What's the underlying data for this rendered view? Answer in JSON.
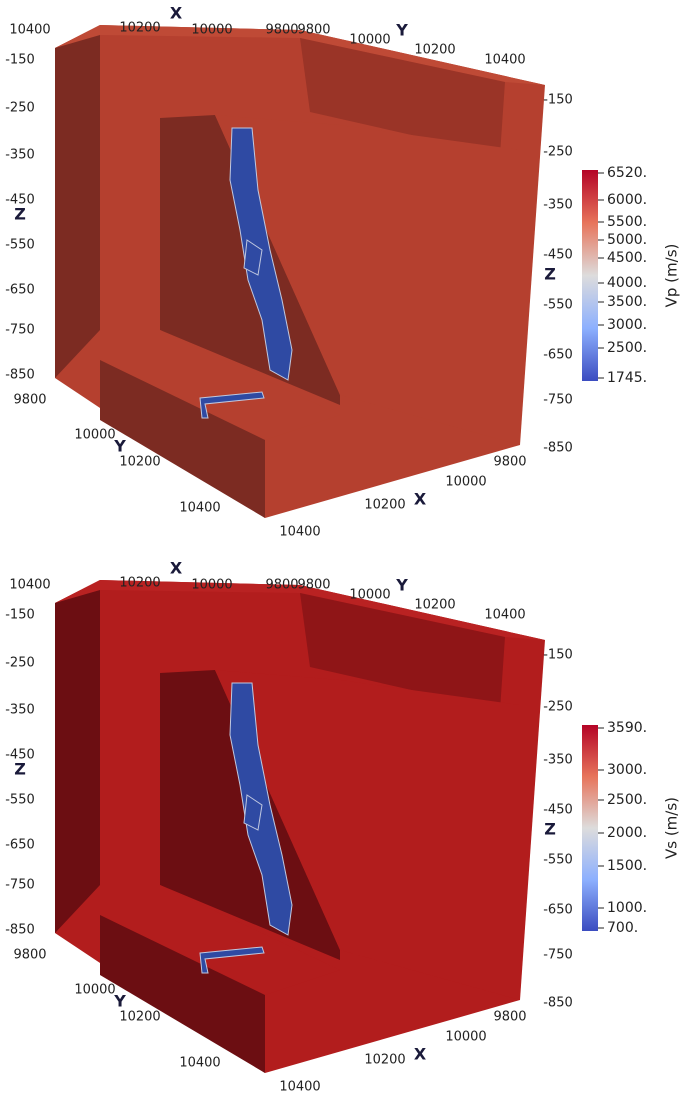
{
  "panels": [
    {
      "top_x_ticks": [
        "10400",
        "10200",
        "10000",
        "9800"
      ],
      "top_x_label": "X",
      "top_y_ticks": [
        "9800",
        "10000",
        "10200",
        "10400"
      ],
      "top_y_label": "Y",
      "left_z_ticks": [
        "-150",
        "-250",
        "-350",
        "-450",
        "-550",
        "-650",
        "-750",
        "-850"
      ],
      "left_z_label": "Z",
      "right_z_ticks": [
        "-150",
        "-250",
        "-350",
        "-450",
        "-550",
        "-650",
        "-750",
        "-850"
      ],
      "right_z_label": "Z",
      "bottom_y_ticks": [
        "9800",
        "10000",
        "10200",
        "10400"
      ],
      "bottom_y_label": "Y",
      "bottom_x_ticks": [
        "10400",
        "10200",
        "10000",
        "9800"
      ],
      "bottom_x_label": "X",
      "colorbar": {
        "title": "Vp (m/s)",
        "ticks": [
          "6520.",
          "6000.",
          "5500.",
          "5000.",
          "4500.",
          "4000.",
          "3500.",
          "3000.",
          "2500.",
          "1745."
        ]
      }
    },
    {
      "top_x_ticks": [
        "10400",
        "10200",
        "10000",
        "9800"
      ],
      "top_x_label": "X",
      "top_y_ticks": [
        "9800",
        "10000",
        "10200",
        "10400"
      ],
      "top_y_label": "Y",
      "left_z_ticks": [
        "-150",
        "-250",
        "-350",
        "-450",
        "-550",
        "-650",
        "-750",
        "-850"
      ],
      "left_z_label": "Z",
      "right_z_ticks": [
        "-150",
        "-250",
        "-350",
        "-450",
        "-550",
        "-650",
        "-750",
        "-850"
      ],
      "right_z_label": "Z",
      "bottom_y_ticks": [
        "9800",
        "10000",
        "10200",
        "10400"
      ],
      "bottom_y_label": "Y",
      "bottom_x_ticks": [
        "10400",
        "10200",
        "10000",
        "9800"
      ],
      "bottom_x_label": "X",
      "colorbar": {
        "title": "Vs (m/s)",
        "ticks": [
          "3590.",
          "3000.",
          "2500.",
          "2000.",
          "1500.",
          "1000.",
          "700."
        ]
      }
    }
  ]
}
